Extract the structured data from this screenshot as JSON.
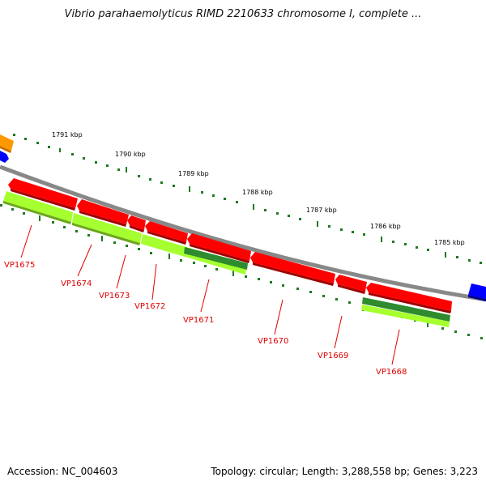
{
  "title": "Vibrio parahaemolyticus RIMD 2210633 chromosome I, complete ...",
  "accession": "Accession: NC_004603",
  "summary": "Topology: circular; Length: 3,288,558 bp; Genes: 3,223",
  "ruler_labels": [
    "1791 kbp",
    "1790 kbp",
    "1789 kbp",
    "1788 kbp",
    "1787 kbp",
    "1786 kbp",
    "1785 kbp"
  ],
  "genes": [
    "VP1675",
    "VP1674",
    "VP1673",
    "VP1672",
    "VP1671",
    "VP1670",
    "VP1669",
    "VP1668"
  ],
  "colors": {
    "gene_red": "#ff0000",
    "gene_green": "#a6ff2e",
    "gene_dark_green": "#2e8b2e",
    "backbone": "#808080",
    "ruler": "#1f7a1f",
    "label_red": "#e00000",
    "orange": "#ff9900",
    "blue": "#0000ff"
  }
}
